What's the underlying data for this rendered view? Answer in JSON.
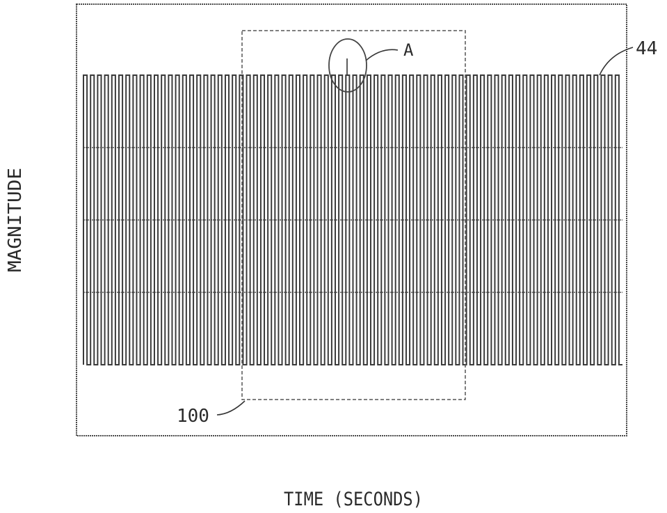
{
  "chart_data": {
    "type": "line",
    "title": "",
    "xlabel": "TIME (SECONDS)",
    "ylabel": "MAGNITUDE",
    "series": [
      {
        "label_ref": "44",
        "waveform": "square",
        "cycles": 76,
        "amplitude_levels": [
          -1,
          1
        ]
      }
    ],
    "grid": {
      "horizontal_lines": 3,
      "vertical_lines": 0
    },
    "annotations": [
      {
        "ref": "A",
        "shape": "ellipse",
        "note": ""
      },
      {
        "ref": "100",
        "shape": "dashed-rectangle"
      }
    ],
    "ticks": {
      "x": [],
      "y": []
    }
  },
  "colors": {
    "line": "#3a3a3a",
    "frame": "#4a4a4a",
    "background": "#ffffff"
  }
}
